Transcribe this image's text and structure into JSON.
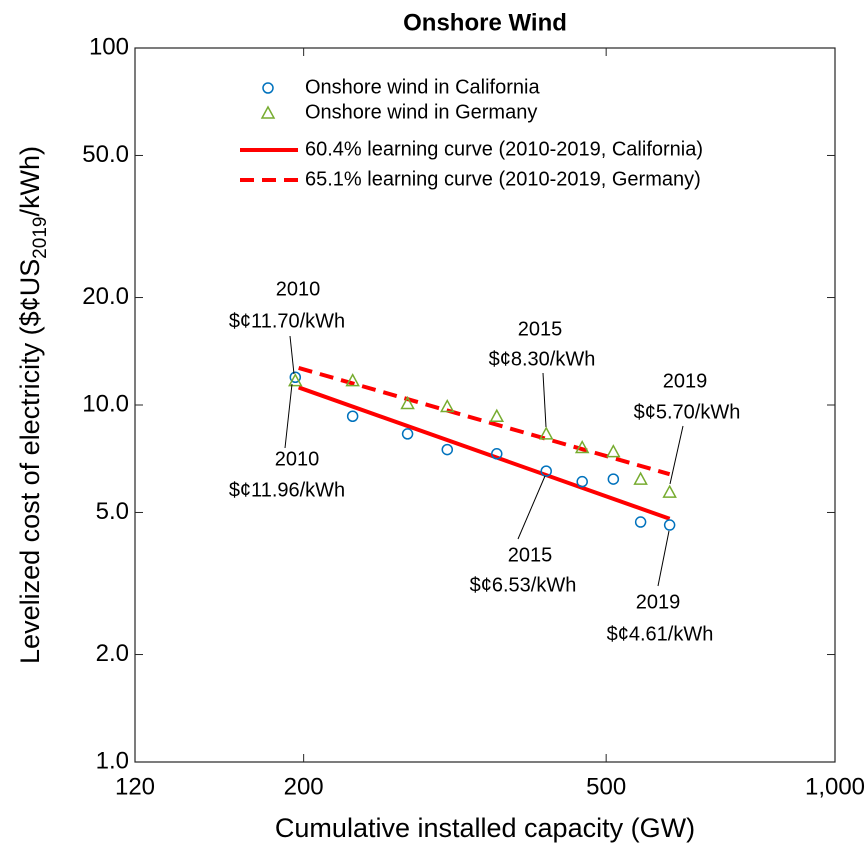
{
  "chart_data": {
    "type": "scatter",
    "title": "Onshore Wind",
    "xlabel": "Cumulative installed capacity (GW)",
    "ylabel": [
      "Levelized cost of electricity ($¢US",
      "2019",
      "/kWh)"
    ],
    "xscale": "log",
    "yscale": "log",
    "xlim": [
      120,
      1000
    ],
    "ylim": [
      1,
      100
    ],
    "xticks": [
      120,
      200,
      500,
      {
        "value": 1000,
        "label": "1,000"
      }
    ],
    "yticks": [
      {
        "value": 1,
        "label": "1.0"
      },
      {
        "value": 2,
        "label": "2.0"
      },
      {
        "value": 5,
        "label": "5.0"
      },
      {
        "value": 10,
        "label": "10.0"
      },
      {
        "value": 20,
        "label": "20.0"
      },
      {
        "value": 50,
        "label": "50.0"
      },
      100
    ],
    "grid": false,
    "legend": "top",
    "series": [
      {
        "name": "Onshore wind in California",
        "color": "#0072bd",
        "marker": "circle",
        "x": [
          195,
          232,
          274,
          309,
          359,
          417,
          465,
          511,
          555,
          606
        ],
        "values": [
          11.96,
          9.3,
          8.3,
          7.5,
          7.3,
          6.53,
          6.1,
          6.2,
          4.7,
          4.61
        ]
      },
      {
        "name": "Onshore wind in Germany",
        "color": "#77ac30",
        "marker": "triangle",
        "x": [
          195,
          232,
          274,
          309,
          359,
          417,
          465,
          511,
          555,
          606
        ],
        "values": [
          11.7,
          11.7,
          10.1,
          9.9,
          9.3,
          8.3,
          7.6,
          7.4,
          6.2,
          5.7
        ]
      }
    ],
    "fit_lines": [
      {
        "name": "60.4% learning curve (2010-2019, California)",
        "color": "#ff0000",
        "dash": false,
        "x": [
          197,
          606
        ],
        "values": [
          11.2,
          4.8
        ]
      },
      {
        "name": "65.1% learning curve (2010-2019, Germany)",
        "color": "#ff0000",
        "dash": true,
        "x": [
          197,
          606
        ],
        "values": [
          12.7,
          6.4
        ]
      }
    ],
    "annotations": [
      [
        "2010",
        "$¢11.70/kWh"
      ],
      [
        "2010",
        "$¢11.96/kWh"
      ],
      [
        "2015",
        "$¢8.30/kWh"
      ],
      [
        "2015",
        "$¢6.53/kWh"
      ],
      [
        "2019",
        "$¢5.70/kWh"
      ],
      [
        "2019",
        "$¢4.61/kWh"
      ]
    ]
  }
}
